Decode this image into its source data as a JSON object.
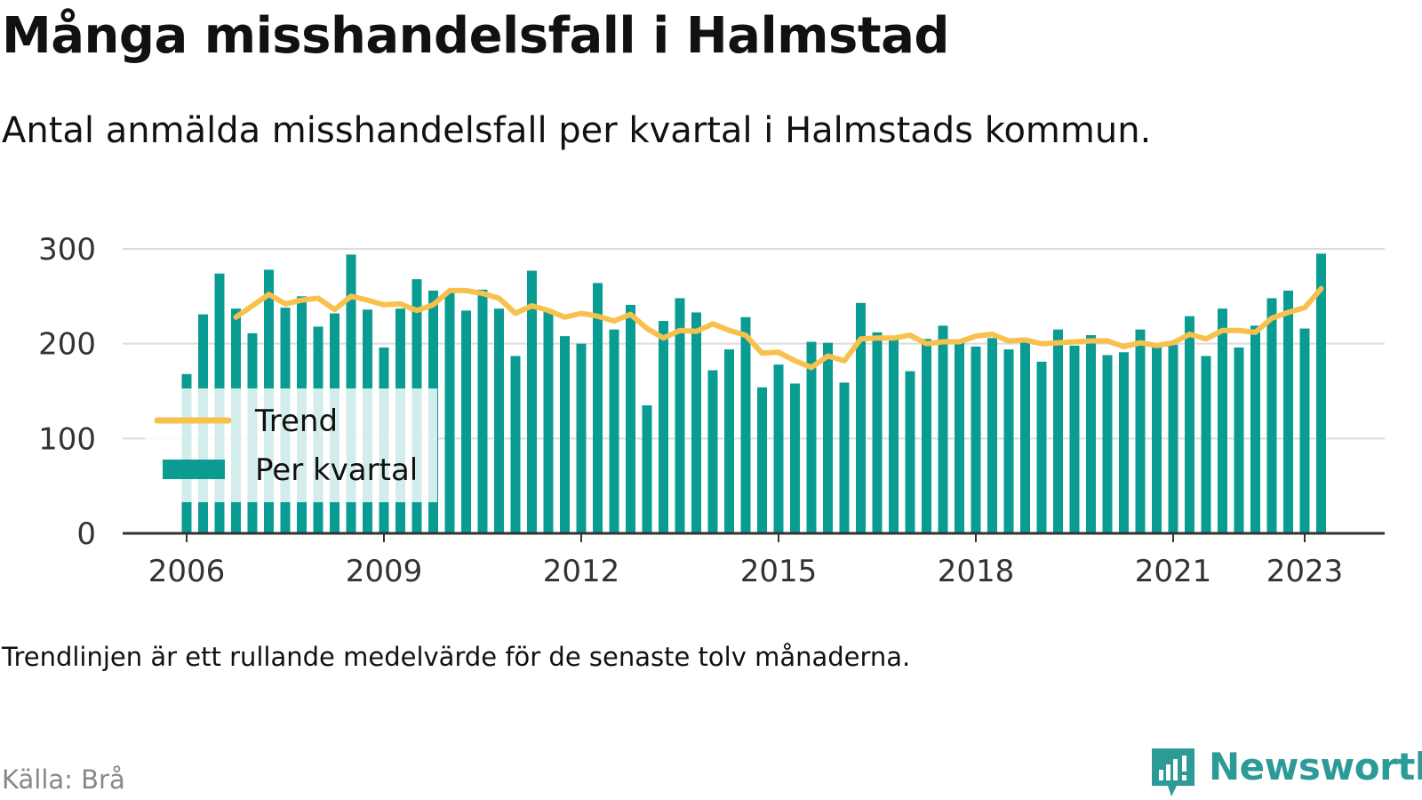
{
  "title": "Många misshandelsfall i Halmstad",
  "subtitle": "Antal anmälda misshandelsfall per kvartal i Halmstads kommun.",
  "note": "Trendlinjen är ett rullande medelvärde för de senaste tolv månaderna.",
  "source": "Källa: Brå",
  "brand": {
    "name": "Newsworthy",
    "logo_icon": "newsworthy-logo-icon"
  },
  "colors": {
    "bars": "#0a9c92",
    "trend": "#f8c14e",
    "grid": "#dcdcdc",
    "axis": "#333333",
    "brand": "#2c9b98"
  },
  "chart_data": {
    "type": "bar",
    "x_unit": "quarter",
    "start_quarter": "2006 Q1",
    "x_ticks": [
      "2006",
      "2009",
      "2012",
      "2015",
      "2018",
      "2021",
      "2023"
    ],
    "y_ticks": [
      0,
      100,
      200,
      300
    ],
    "ylim": [
      0,
      300
    ],
    "grid": true,
    "legend_position": "bottom-left",
    "series": [
      {
        "name": "Per kvartal",
        "type": "bar",
        "values": [
          168,
          231,
          274,
          237,
          211,
          278,
          238,
          250,
          218,
          232,
          294,
          236,
          196,
          237,
          268,
          256,
          255,
          235,
          257,
          237,
          187,
          277,
          236,
          208,
          200,
          264,
          215,
          241,
          135,
          224,
          248,
          233,
          172,
          194,
          228,
          154,
          178,
          158,
          202,
          201,
          159,
          243,
          212,
          205,
          171,
          205,
          219,
          201,
          197,
          206,
          194,
          203,
          181,
          215,
          198,
          209,
          188,
          191,
          215,
          199,
          199,
          229,
          187,
          237,
          196,
          219,
          248,
          256,
          216,
          295
        ]
      },
      {
        "name": "Trend",
        "type": "line",
        "start_index": 3,
        "values": [
          228,
          240,
          252,
          242,
          246,
          248,
          236,
          250,
          246,
          241,
          242,
          235,
          241,
          256,
          256,
          253,
          248,
          232,
          240,
          235,
          228,
          232,
          229,
          224,
          231,
          216,
          206,
          214,
          213,
          221,
          214,
          209,
          190,
          191,
          182,
          175,
          187,
          182,
          205,
          206,
          206,
          209,
          200,
          202,
          202,
          208,
          210,
          203,
          204,
          200,
          201,
          202,
          203,
          203,
          197,
          201,
          198,
          201,
          210,
          205,
          214,
          214,
          212,
          227,
          233,
          238,
          258
        ]
      }
    ]
  }
}
